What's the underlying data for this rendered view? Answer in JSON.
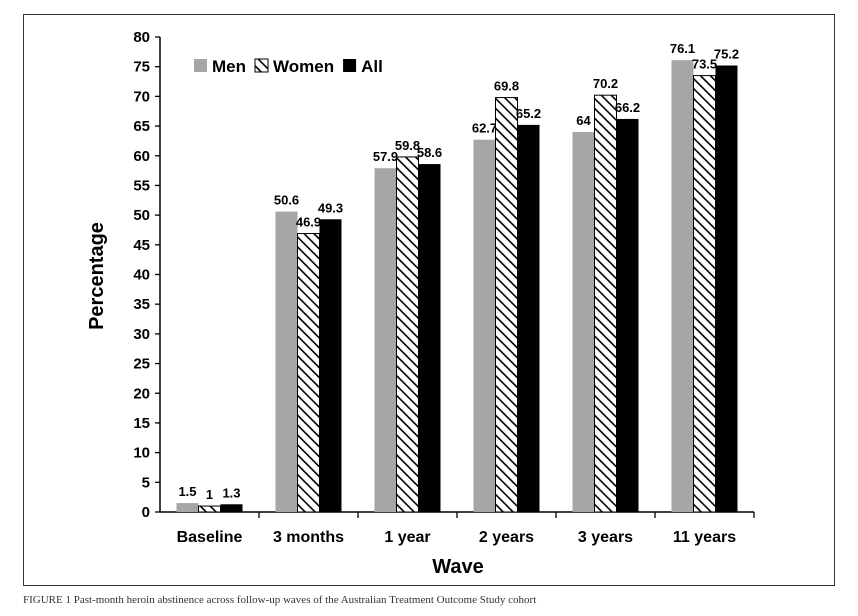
{
  "caption": "FIGURE 1    Past-month heroin abstinence across follow-up waves of the Australian Treatment Outcome Study cohort",
  "chart_data": {
    "type": "bar",
    "title": "",
    "xlabel": "Wave",
    "ylabel": "Percentage",
    "ylim": [
      0,
      80
    ],
    "ytick_step": 5,
    "grid": false,
    "legend_position": "top-left",
    "categories": [
      "Baseline",
      "3 months",
      "1 year",
      "2 years",
      "3 years",
      "11 years"
    ],
    "series": [
      {
        "name": "Men",
        "fill": "solid",
        "color": "#a6a6a6",
        "values": [
          1.5,
          50.6,
          57.9,
          62.7,
          64,
          76.1
        ]
      },
      {
        "name": "Women",
        "fill": "hatched",
        "color": "#000000",
        "values": [
          1,
          46.9,
          59.8,
          69.8,
          70.2,
          73.5
        ]
      },
      {
        "name": "All",
        "fill": "solid",
        "color": "#000000",
        "values": [
          1.3,
          49.3,
          58.6,
          65.2,
          66.2,
          75.2
        ]
      }
    ]
  }
}
